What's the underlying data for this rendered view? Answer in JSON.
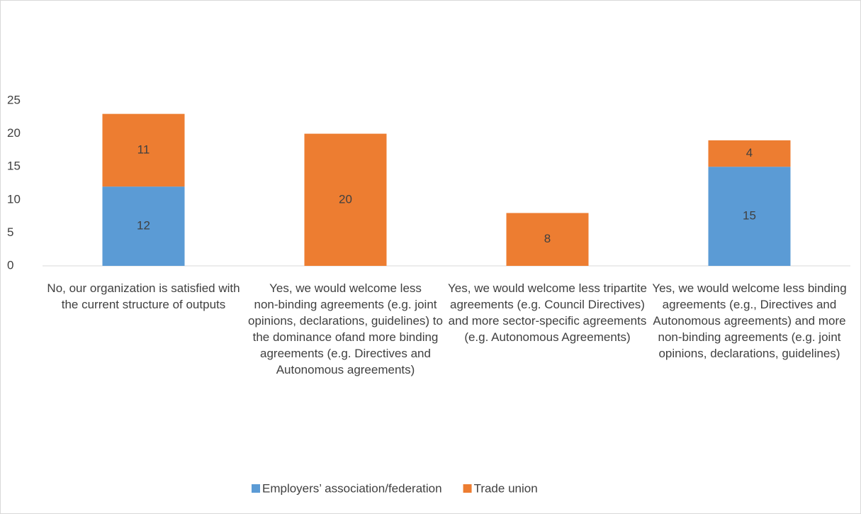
{
  "chart_data": {
    "type": "stacked_bar",
    "categories": [
      "No, our organization is satisfied with the current structure of outputs",
      "Yes, we would welcome less non-binding agreements (e.g. joint opinions, declarations, guidelines)  to the dominance ofand more binding agreements (e.g. Directives and Autonomous agreements)",
      "Yes, we would welcome less tripartite agreements (e.g. Council Directives) and more sector-specific agreements (e.g. Autonomous Agreements)",
      "Yes, we would welcome less binding agreements (e.g., Directives and Autonomous agreements) and more non-binding agreements (e.g. joint opinions, declarations, guidelines)"
    ],
    "series": [
      {
        "name": "Employers’ association/federation",
        "color": "#5b9bd5",
        "values": [
          12,
          null,
          null,
          15
        ]
      },
      {
        "name": "Trade union",
        "color": "#ed7d31",
        "values": [
          11,
          20,
          8,
          4
        ]
      }
    ],
    "ylim": [
      0,
      25
    ],
    "yticks": [
      0,
      5,
      10,
      15,
      20,
      25
    ],
    "grid": false,
    "legend": "bottom"
  }
}
